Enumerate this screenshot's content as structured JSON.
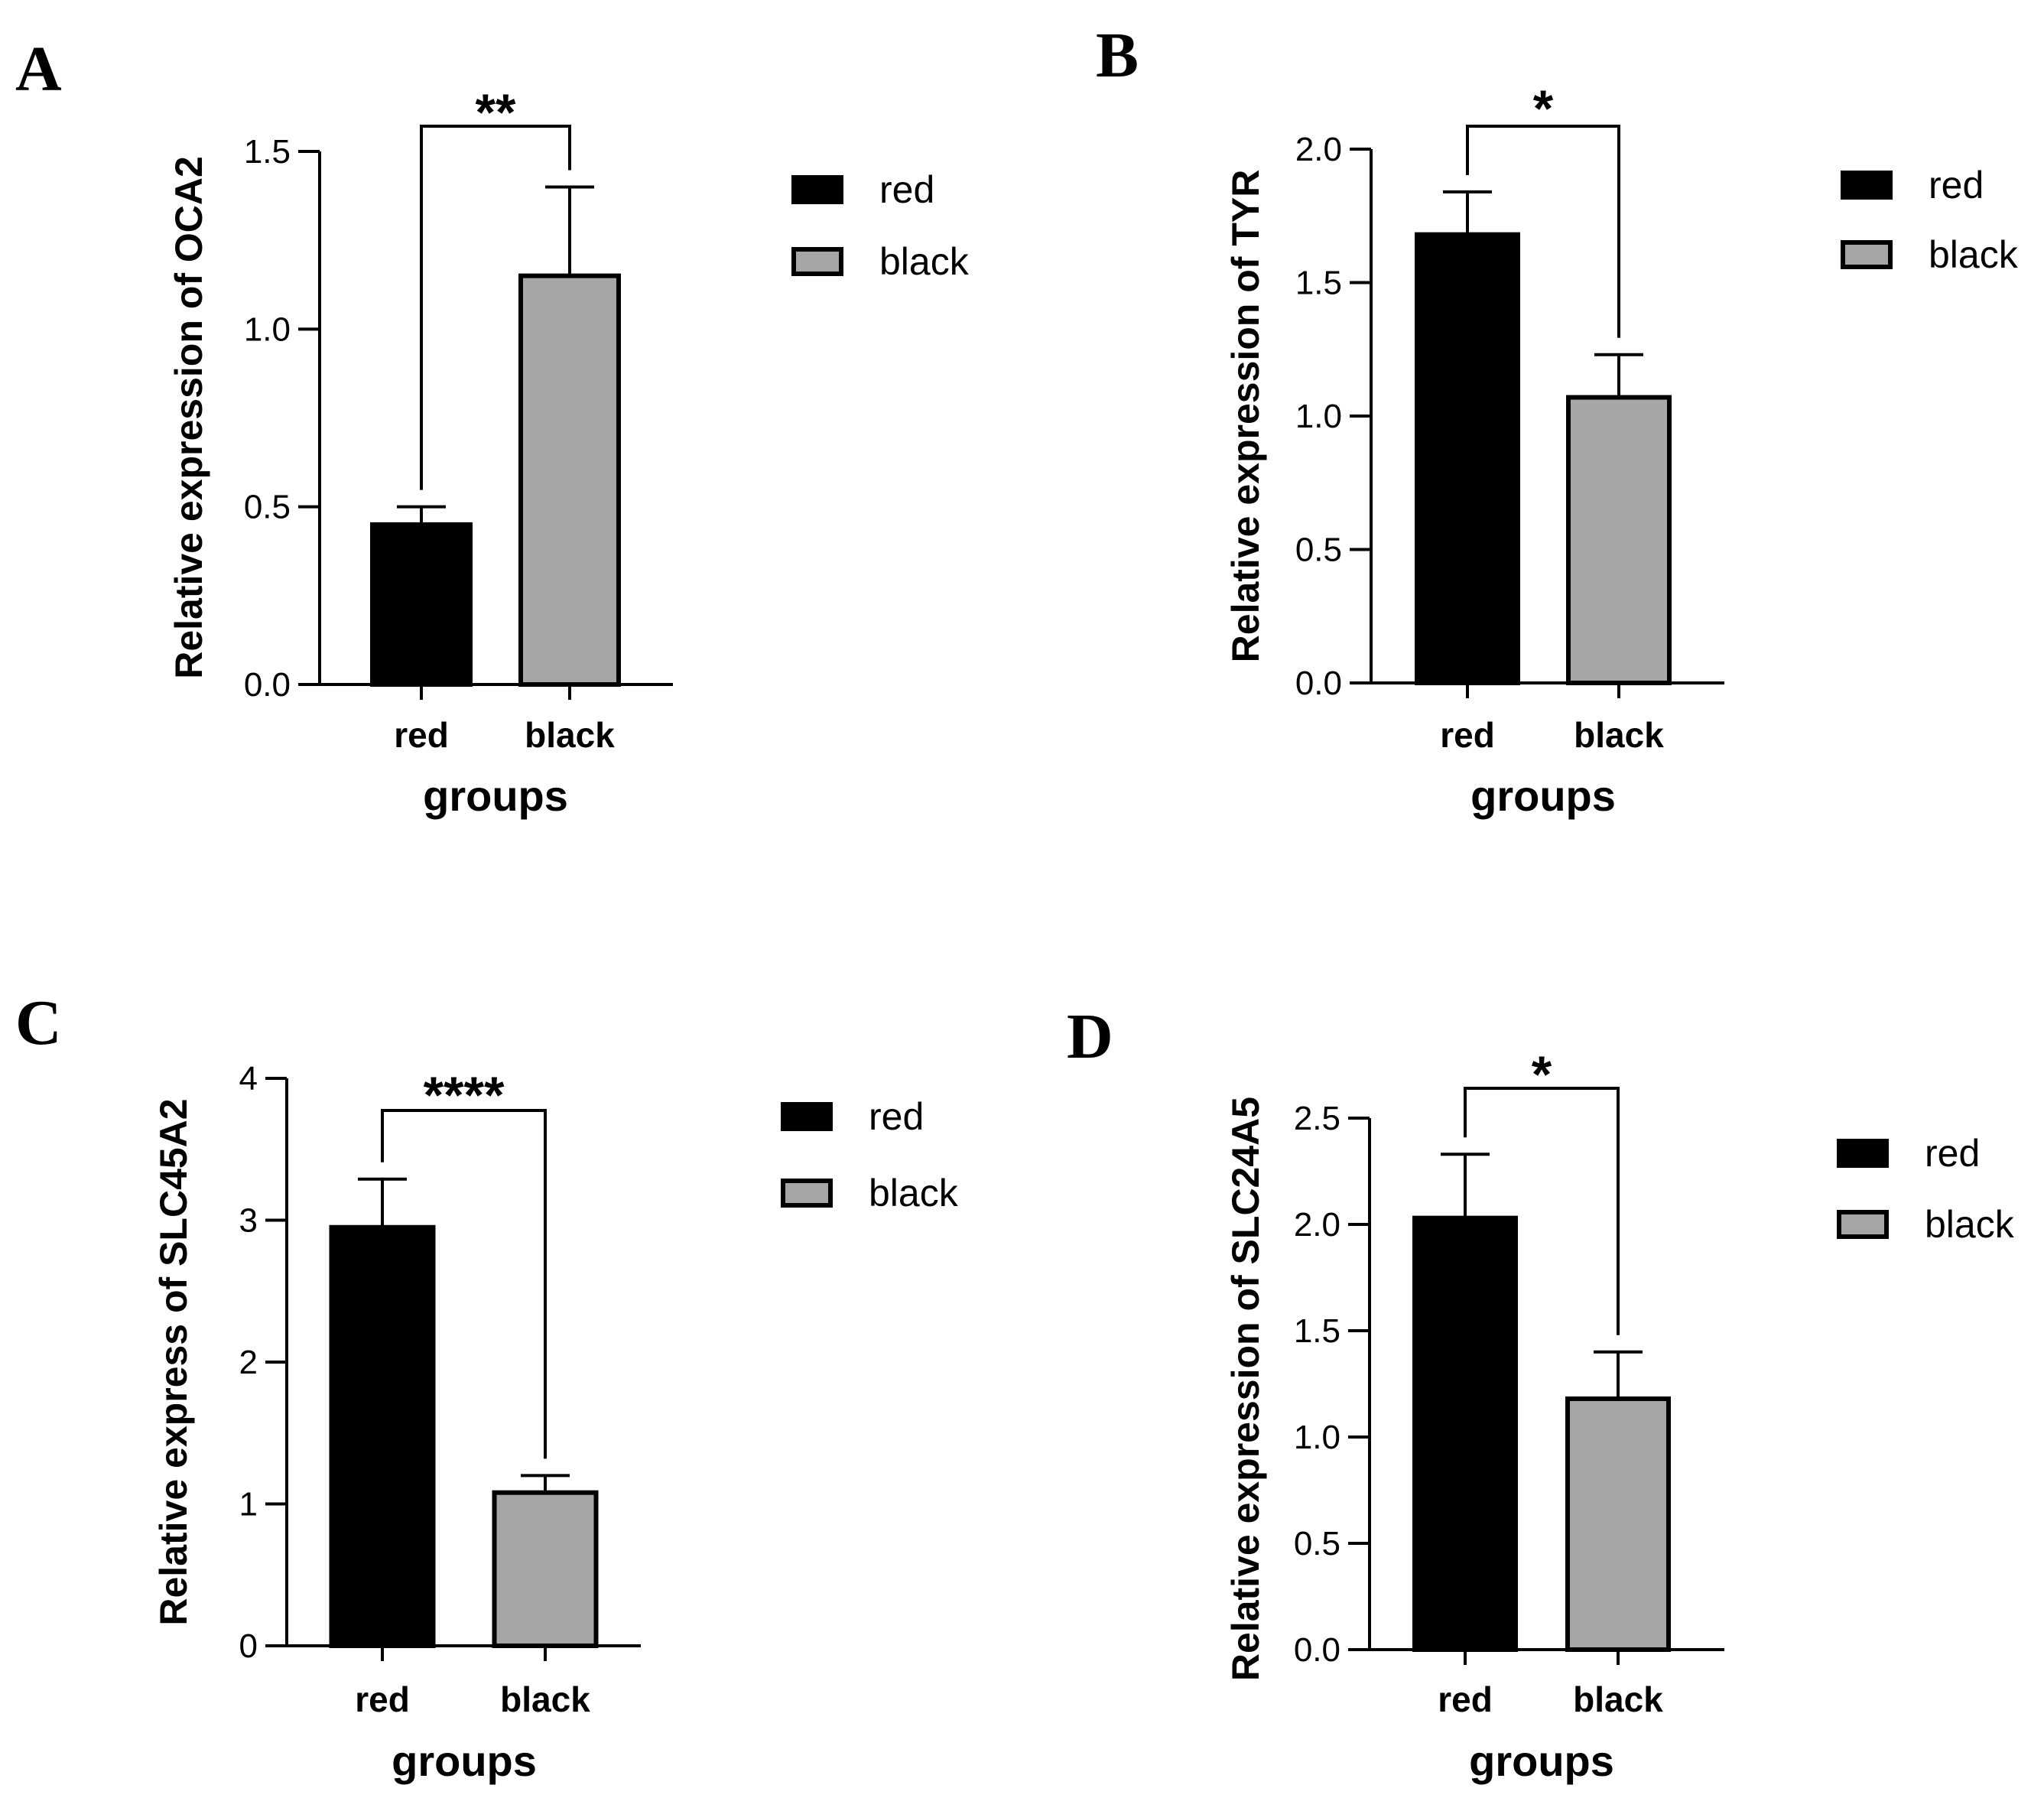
{
  "figure": {
    "colors": {
      "red": "#000000",
      "black": "#a6a6a6",
      "axis": "#000000"
    }
  },
  "chart_data": [
    {
      "panel": "A",
      "type": "bar",
      "categories": [
        "red",
        "black"
      ],
      "values": [
        0.45,
        1.15
      ],
      "errors": [
        0.05,
        0.25
      ],
      "ylabel": "Relative expression of OCA2",
      "xlabel": "groups",
      "ylim": [
        0,
        1.5
      ],
      "yticks": [
        0.0,
        0.5,
        1.0,
        1.5
      ],
      "ytick_labels": [
        "0.0",
        "0.5",
        "1.0",
        "1.5"
      ],
      "significance": "**",
      "legend": [
        "red",
        "black"
      ]
    },
    {
      "panel": "B",
      "type": "bar",
      "categories": [
        "red",
        "black"
      ],
      "values": [
        1.68,
        1.07
      ],
      "errors": [
        0.16,
        0.16
      ],
      "ylabel": "Relative expression of TYR",
      "xlabel": "groups",
      "ylim": [
        0,
        2.0
      ],
      "yticks": [
        0.0,
        0.5,
        1.0,
        1.5,
        2.0
      ],
      "ytick_labels": [
        "0.0",
        "0.5",
        "1.0",
        "1.5",
        "2.0"
      ],
      "significance": "*",
      "legend": [
        "red",
        "black"
      ]
    },
    {
      "panel": "C",
      "type": "bar",
      "categories": [
        "red",
        "black"
      ],
      "values": [
        2.95,
        1.08
      ],
      "errors": [
        0.34,
        0.12
      ],
      "ylabel": "Relative express of SLC45A2",
      "xlabel": "groups",
      "ylim": [
        0,
        4
      ],
      "yticks": [
        0,
        1,
        2,
        3,
        4
      ],
      "ytick_labels": [
        "0",
        "1",
        "2",
        "3",
        "4"
      ],
      "significance": "****",
      "legend": [
        "red",
        "black"
      ]
    },
    {
      "panel": "D",
      "type": "bar",
      "categories": [
        "red",
        "black"
      ],
      "values": [
        2.03,
        1.18
      ],
      "errors": [
        0.3,
        0.22
      ],
      "ylabel": "Relative expression of SLC24A5",
      "xlabel": "groups",
      "ylim": [
        0,
        2.5
      ],
      "yticks": [
        0.0,
        0.5,
        1.0,
        1.5,
        2.0,
        2.5
      ],
      "ytick_labels": [
        "0.0",
        "0.5",
        "1.0",
        "1.5",
        "2.0",
        "2.5"
      ],
      "significance": "*",
      "legend": [
        "red",
        "black"
      ]
    }
  ]
}
